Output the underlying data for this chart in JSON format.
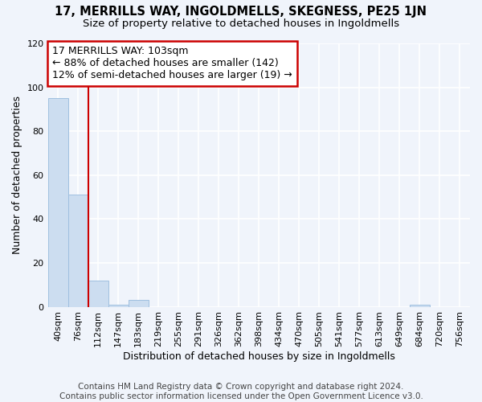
{
  "title": "17, MERRILLS WAY, INGOLDMELLS, SKEGNESS, PE25 1JN",
  "subtitle": "Size of property relative to detached houses in Ingoldmells",
  "xlabel": "Distribution of detached houses by size in Ingoldmells",
  "ylabel": "Number of detached properties",
  "bin_labels": [
    "40sqm",
    "76sqm",
    "112sqm",
    "147sqm",
    "183sqm",
    "219sqm",
    "255sqm",
    "291sqm",
    "326sqm",
    "362sqm",
    "398sqm",
    "434sqm",
    "470sqm",
    "505sqm",
    "541sqm",
    "577sqm",
    "613sqm",
    "649sqm",
    "684sqm",
    "720sqm",
    "756sqm"
  ],
  "bar_values": [
    95,
    51,
    12,
    1,
    3,
    0,
    0,
    0,
    0,
    0,
    0,
    0,
    0,
    0,
    0,
    0,
    0,
    0,
    1,
    0,
    0
  ],
  "bar_color": "#ccddf0",
  "bar_edge_color": "#a0c0e0",
  "red_line_x": 1.5,
  "annotation_line1": "17 MERRILLS WAY: 103sqm",
  "annotation_line2": "← 88% of detached houses are smaller (142)",
  "annotation_line3": "12% of semi-detached houses are larger (19) →",
  "annotation_box_color": "#ffffff",
  "annotation_box_edge_color": "#cc0000",
  "red_line_color": "#cc0000",
  "ylim": [
    0,
    120
  ],
  "yticks": [
    0,
    20,
    40,
    60,
    80,
    100,
    120
  ],
  "footer_text": "Contains HM Land Registry data © Crown copyright and database right 2024.\nContains public sector information licensed under the Open Government Licence v3.0.",
  "background_color": "#f0f4fb",
  "grid_color": "#ffffff",
  "title_fontsize": 10.5,
  "subtitle_fontsize": 9.5,
  "axis_label_fontsize": 9,
  "tick_fontsize": 8,
  "annotation_fontsize": 9,
  "footer_fontsize": 7.5
}
